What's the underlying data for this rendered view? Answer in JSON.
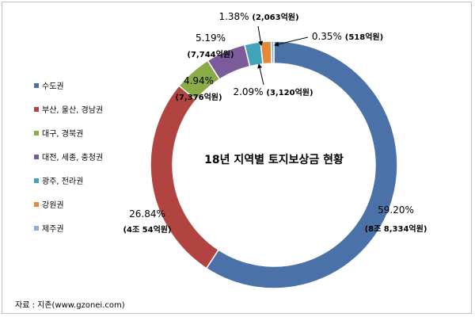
{
  "chart_data": {
    "type": "pie",
    "title": "18년 지역별 토지보상금 현황",
    "legend_placement": "left",
    "categories": [
      "수도권",
      "부산, 울산, 경남권",
      "대구, 경북권",
      "대전, 세종, 충청권",
      "광주, 전라권",
      "강원권",
      "제주권"
    ],
    "values": [
      59.2,
      26.84,
      4.94,
      5.19,
      2.09,
      1.38,
      0.35
    ],
    "percent_labels": [
      "59.20%",
      "26.84%",
      "4.94%",
      "5.19%",
      "2.09%",
      "1.38%",
      "0.35%"
    ],
    "amount_labels": [
      "(8조 8,334억원)",
      "(4조 54억원)",
      "(7,376억원)",
      "(7,744억원)",
      "(3,120억원)",
      "(2,063억원)",
      "(518억원)"
    ],
    "colors": [
      "#4a72a8",
      "#b14440",
      "#8bab46",
      "#7b5b9a",
      "#3fa3b9",
      "#e4883a",
      "#91a9d3"
    ]
  },
  "source": "자료 : 지존(www.gzonei.com)"
}
